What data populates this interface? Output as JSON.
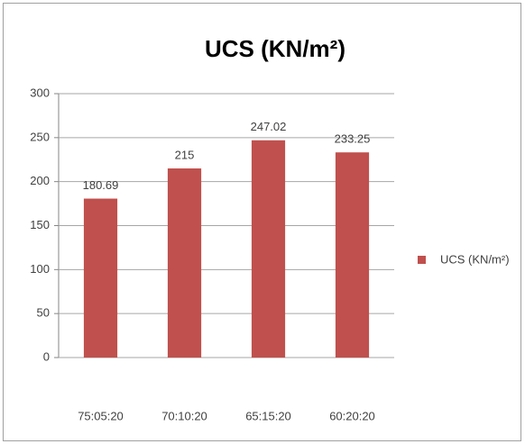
{
  "chart_data": {
    "type": "bar",
    "title": "UCS (KN/m²)",
    "categories": [
      "75:05:20",
      "70:10:20",
      "65:15:20",
      "60:20:20"
    ],
    "series": [
      {
        "name": "UCS (KN/m²)",
        "color": "#c0504d",
        "values": [
          180.69,
          215,
          247.02,
          233.25
        ]
      }
    ],
    "ylim": [
      0,
      300
    ],
    "yticks": [
      0,
      50,
      100,
      150,
      200,
      250,
      300
    ],
    "grid": true,
    "legend": "right"
  }
}
